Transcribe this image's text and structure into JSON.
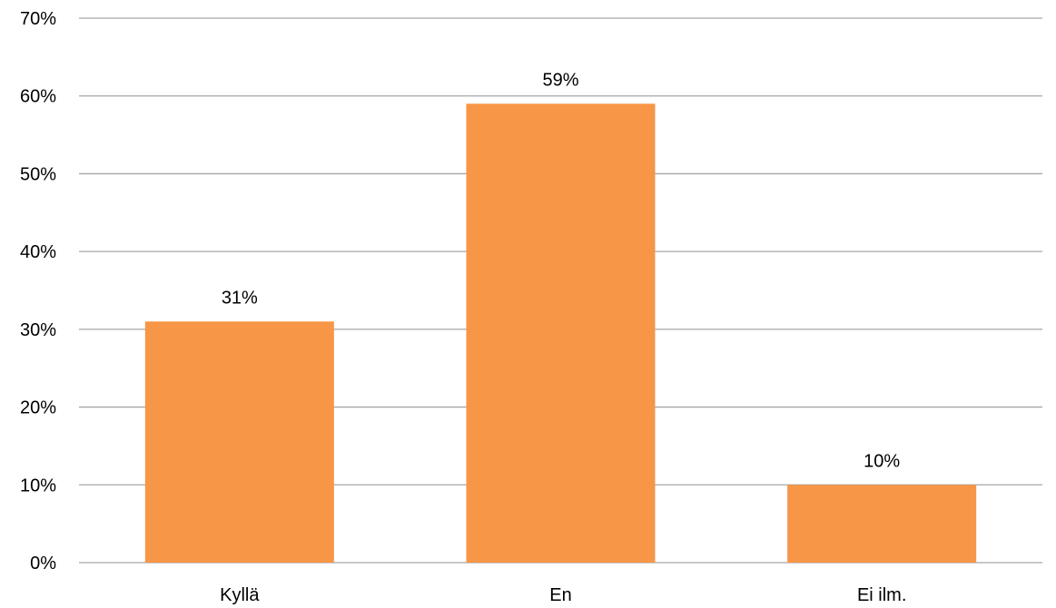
{
  "chart_data": {
    "type": "bar",
    "title": "",
    "xlabel": "",
    "ylabel": "",
    "categories": [
      "Kyllä",
      "En",
      "Ei ilm."
    ],
    "values": [
      31,
      59,
      10
    ],
    "data_labels": [
      "31%",
      "59%",
      "10%"
    ],
    "ylim": [
      0,
      70
    ],
    "y_ticks": [
      0,
      10,
      20,
      30,
      40,
      50,
      60,
      70
    ],
    "y_tick_labels": [
      "0%",
      "10%",
      "20%",
      "30%",
      "40%",
      "50%",
      "60%",
      "70%"
    ],
    "grid": true,
    "legend": "none",
    "bar_color": "#f79646",
    "grid_color": "#a6a6a6"
  }
}
